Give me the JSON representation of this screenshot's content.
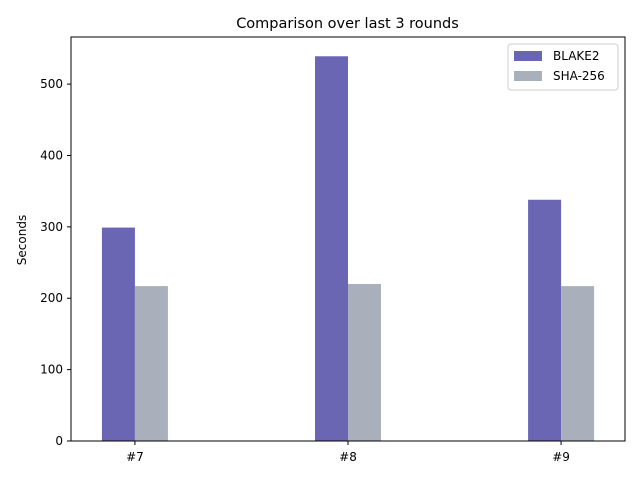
{
  "chart_data": {
    "type": "bar",
    "title": "Comparison over last 3 rounds",
    "xlabel": "",
    "ylabel": "Seconds",
    "categories": [
      "#7",
      "#8",
      "#9"
    ],
    "series": [
      {
        "name": "BLAKE2",
        "values": [
          299,
          539,
          338
        ],
        "color": "#6a66b4"
      },
      {
        "name": "SHA-256",
        "values": [
          217,
          220,
          217
        ],
        "color": "#a9b0bb"
      }
    ],
    "ylim": [
      0,
      566
    ],
    "yticks": [
      0,
      100,
      200,
      300,
      400,
      500
    ],
    "grid": false,
    "legend_position": "top-right"
  }
}
